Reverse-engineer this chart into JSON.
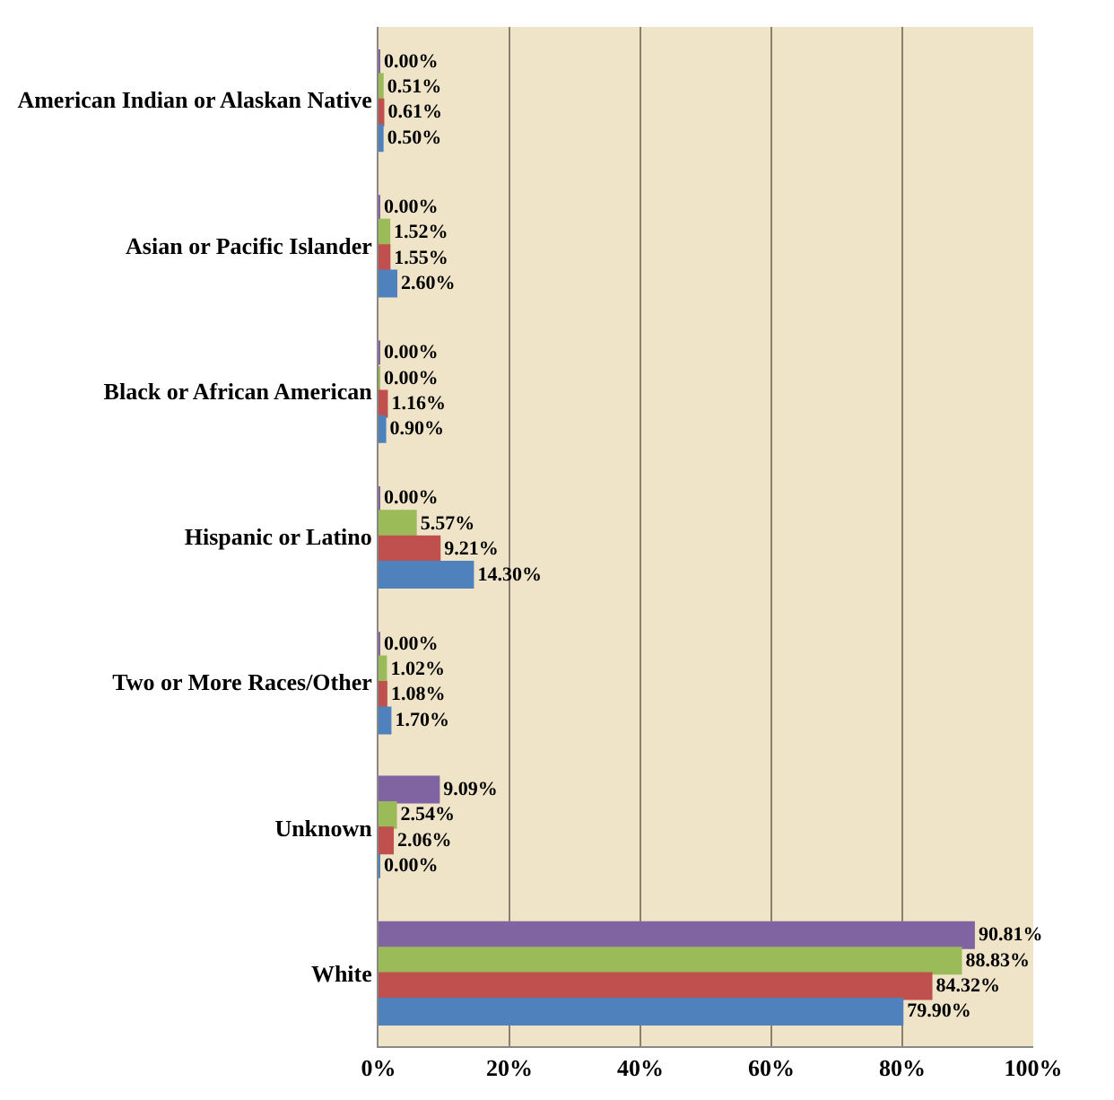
{
  "chart_data": {
    "type": "bar",
    "orientation": "horizontal",
    "categories": [
      "American Indian or Alaskan Native",
      "Asian or Pacific Islander",
      "Black or African American",
      "Hispanic or Latino",
      "Two or More Races/Other",
      "Unknown",
      "White"
    ],
    "series": [
      {
        "color": "#8064a2",
        "values": [
          0.0,
          0.0,
          0.0,
          0.0,
          0.0,
          9.09,
          90.81
        ],
        "value_labels": [
          "0.00%",
          "0.00%",
          "0.00%",
          "0.00%",
          "0.00%",
          "9.09%",
          "90.81%"
        ]
      },
      {
        "color": "#9bbb59",
        "values": [
          0.51,
          1.52,
          0.0,
          5.57,
          1.02,
          2.54,
          88.83
        ],
        "value_labels": [
          "0.51%",
          "1.52%",
          "0.00%",
          "5.57%",
          "1.02%",
          "2.54%",
          "88.83%"
        ]
      },
      {
        "color": "#c0504d",
        "values": [
          0.61,
          1.55,
          1.16,
          9.21,
          1.08,
          2.06,
          84.32
        ],
        "value_labels": [
          "0.61%",
          "1.55%",
          "1.16%",
          "9.21%",
          "1.08%",
          "2.06%",
          "84.32%"
        ]
      },
      {
        "color": "#4f81bd",
        "values": [
          0.5,
          2.6,
          0.9,
          14.3,
          1.7,
          0.0,
          79.9
        ],
        "value_labels": [
          "0.50%",
          "2.60%",
          "0.90%",
          "14.30%",
          "1.70%",
          "0.00%",
          "79.90%"
        ]
      }
    ],
    "xlim": [
      0,
      100
    ],
    "xticks": [
      {
        "value": 0,
        "label": "0%"
      },
      {
        "value": 20,
        "label": "20%"
      },
      {
        "value": 40,
        "label": "40%"
      },
      {
        "value": 60,
        "label": "60%"
      },
      {
        "value": 80,
        "label": "80%"
      },
      {
        "value": 100,
        "label": "100%"
      }
    ],
    "grid": "x",
    "legend": false
  }
}
